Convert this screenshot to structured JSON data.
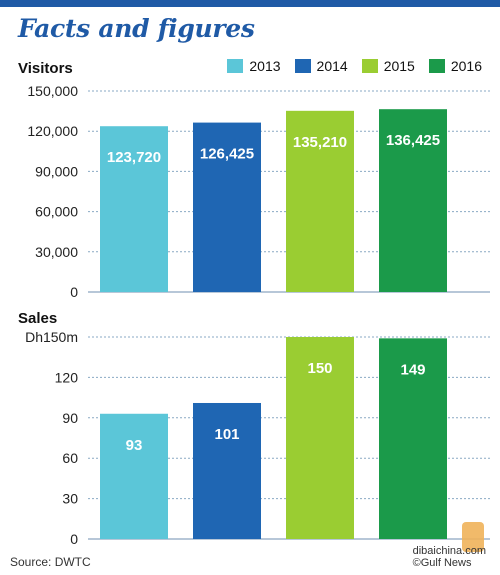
{
  "title": "Facts and figures",
  "source": "Source: DWTC",
  "credit": "©Gulf News",
  "watermark": {
    "line1": "dibaichina.com"
  },
  "colors": {
    "2013": "#5bc6d8",
    "2014": "#1f66b3",
    "2015": "#9acd32",
    "2016": "#1b9a4a",
    "title": "#1f5aa6",
    "grid": "#8aa9c4"
  },
  "legend": [
    {
      "label": "2013",
      "color": "#5bc6d8"
    },
    {
      "label": "2014",
      "color": "#1f66b3"
    },
    {
      "label": "2015",
      "color": "#9acd32"
    },
    {
      "label": "2016",
      "color": "#1b9a4a"
    }
  ],
  "chart_data": [
    {
      "type": "bar",
      "title": "Visitors",
      "categories": [
        "2013",
        "2014",
        "2015",
        "2016"
      ],
      "values": [
        123720,
        126425,
        135210,
        136425
      ],
      "value_labels": [
        "123,720",
        "126,425",
        "135,210",
        "136,425"
      ],
      "ylim": [
        0,
        150000
      ],
      "yticks": [
        0,
        30000,
        60000,
        90000,
        120000,
        150000
      ],
      "ytick_labels": [
        "0",
        "30,000",
        "60,000",
        "90,000",
        "120,000",
        "150,000"
      ],
      "grid": true,
      "legend": "top-right"
    },
    {
      "type": "bar",
      "title": "Sales",
      "categories": [
        "2013",
        "2014",
        "2015",
        "2016"
      ],
      "values": [
        93,
        101,
        150,
        149
      ],
      "value_labels": [
        "93",
        "101",
        "150",
        "149"
      ],
      "ylim": [
        0,
        150
      ],
      "yticks": [
        0,
        30,
        60,
        90,
        120,
        150
      ],
      "ytick_labels": [
        "0",
        "30",
        "60",
        "90",
        "120",
        "Dh150m"
      ],
      "grid": true
    }
  ]
}
